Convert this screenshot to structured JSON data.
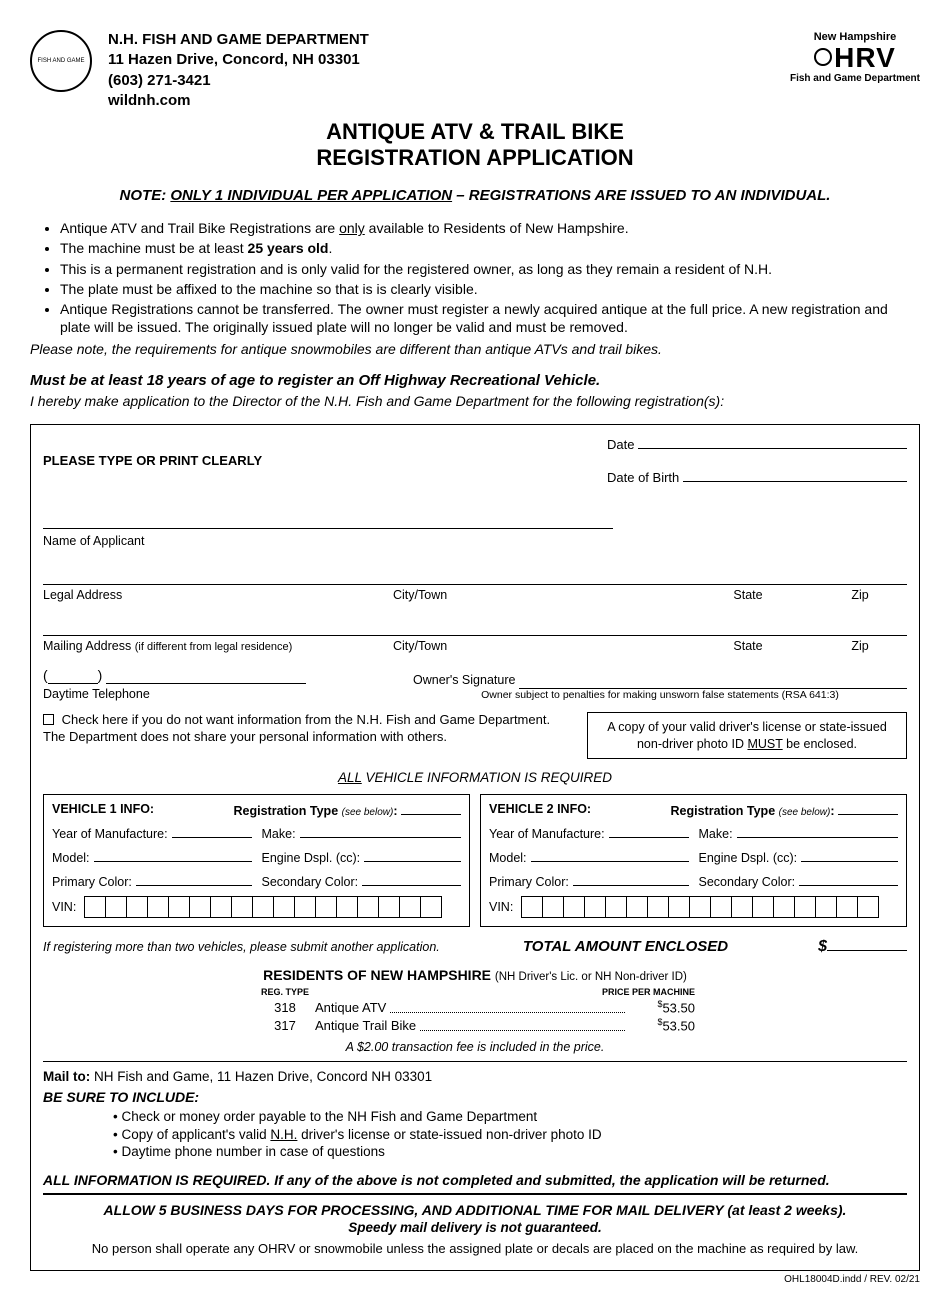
{
  "header": {
    "dept_name": "N.H. FISH AND GAME DEPARTMENT",
    "address": "11 Hazen Drive, Concord, NH 03301",
    "phone": "(603) 271-3421",
    "website": "wildnh.com",
    "seal_text": "FISH AND GAME",
    "ohrv_top": "New Hampshire",
    "ohrv_main": "HRV",
    "ohrv_sub": "Fish and Game Department"
  },
  "title_line1": "ANTIQUE ATV & TRAIL BIKE",
  "title_line2": "REGISTRATION APPLICATION",
  "note_prefix": "NOTE:",
  "note_underlined": "ONLY 1 INDIVIDUAL PER APPLICATION",
  "note_suffix": "– REGISTRATIONS ARE ISSUED TO AN INDIVIDUAL.",
  "rules": [
    "Antique ATV and Trail Bike Registrations are only available to Residents of New Hampshire.",
    "The machine must be at least 25 years old.",
    "This is a permanent registration and is only valid for the registered owner, as long as they remain a resident of N.H.",
    "The plate must be affixed to the machine so that is is clearly visible.",
    "Antique Registrations cannot be transferred. The owner must register a newly acquired antique at the full price. A new registration and plate will be issued. The originally issued plate will no longer be valid and must be removed."
  ],
  "rules_subnote": "Please note, the requirements for antique snowmobiles are different than antique ATVs and trail bikes.",
  "age_line": "Must be at least 18 years of age to register an Off Highway Recreational Vehicle.",
  "hereby": "I hereby make application to the Director of the N.H. Fish and Game Department for the following registration(s):",
  "form": {
    "print_clearly": "PLEASE TYPE OR PRINT CLEARLY",
    "date_label": "Date",
    "dob_label": "Date of Birth",
    "name_label": "Name of Applicant",
    "legal_addr_label": "Legal Address",
    "city_label": "City/Town",
    "state_label": "State",
    "zip_label": "Zip",
    "mailing_addr_label": "Mailing Address",
    "mailing_paren": "(if different from legal residence)",
    "daytime_phone_label": "Daytime Telephone",
    "owner_sig_label": "Owner's Signature",
    "owner_sig_sub": "Owner subject to penalties for making unsworn false statements (RSA 641:3)",
    "opt_out_text": "Check here if you do not want information from the N.H. Fish and Game Department. The Department does not share your personal information with others.",
    "id_box_line1": "A copy of your valid driver's license or state-issued",
    "id_box_line2_pre": "non-driver photo ID ",
    "id_box_must": "MUST",
    "id_box_line2_post": " be enclosed.",
    "all_vehicle_req_pre": "",
    "all_vehicle_req_und": "ALL",
    "all_vehicle_req_post": " VEHICLE INFORMATION IS REQUIRED"
  },
  "vehicle_labels": {
    "hdr1": "VEHICLE 1 INFO:",
    "hdr2": "VEHICLE 2 INFO:",
    "reg_type": "Registration Type",
    "reg_type_paren": "(see below)",
    "year": "Year of Manufacture:",
    "make": "Make:",
    "model": "Model:",
    "engine": "Engine Dspl. (cc):",
    "primary": "Primary Color:",
    "secondary": "Secondary Color:",
    "vin": "VIN:",
    "vin_cell_count": 17
  },
  "more_than_two": "If registering more than two vehicles, please submit another application.",
  "total_enclosed": "TOTAL AMOUNT ENCLOSED",
  "dollar": "$",
  "residents_hdr": "RESIDENTS OF NEW HAMPSHIRE",
  "residents_paren": "(NH Driver's Lic. or NH Non-driver ID)",
  "price_headers": {
    "reg_type": "REG. TYPE",
    "price": "PRICE PER MACHINE"
  },
  "prices": [
    {
      "code": "318",
      "name": "Antique ATV",
      "price": "53.50"
    },
    {
      "code": "317",
      "name": "Antique Trail Bike",
      "price": "53.50"
    }
  ],
  "fee_note": "A $2.00 transaction fee is included in the price.",
  "mailto_label": "Mail to:",
  "mailto_addr": "NH Fish and Game, 11 Hazen Drive, Concord NH 03301",
  "be_sure": "BE SURE TO INCLUDE:",
  "include_items": [
    "Check or money order payable to the NH Fish and Game Department",
    "Copy of applicant's valid N.H. driver's license or state-issued non-driver photo ID",
    "Daytime phone number in case of questions"
  ],
  "all_info_req": "ALL INFORMATION IS REQUIRED. If any of the above is not completed and submitted, the application will be returned.",
  "allow": "ALLOW 5 BUSINESS DAYS FOR PROCESSING, AND ADDITIONAL TIME FOR MAIL DELIVERY (at least 2 weeks).",
  "speedy": "Speedy mail delivery is not guaranteed.",
  "no_person": "No person shall operate any OHRV or snowmobile unless the assigned plate or decals are placed on the machine as required by law.",
  "doc_code": "OHL18004D.indd / REV. 02/21"
}
